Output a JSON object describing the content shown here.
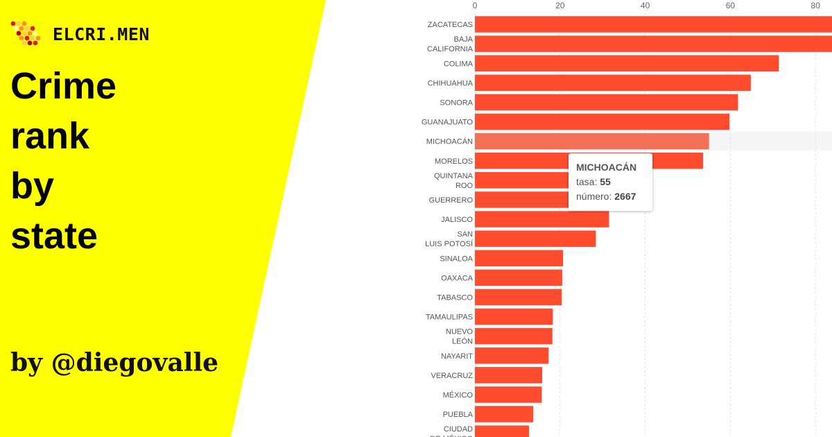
{
  "brand": {
    "name": "ELCRI.MEN"
  },
  "headline": [
    "Crime",
    "rank",
    "by",
    "state"
  ],
  "byline": "by @diegovalle",
  "colors": {
    "panel": "#ffff00",
    "bar": "#ff4b2e",
    "bar_highlight": "#f47059",
    "row_highlight": "#f5f5f8",
    "grid": "#e2e2e2"
  },
  "tooltip": {
    "state": "MICHOACÁN",
    "rate_label": "tasa:",
    "rate_value": "55",
    "count_label": "número:",
    "count_value": "2667"
  },
  "chart_data": {
    "type": "bar",
    "orientation": "horizontal",
    "xlim": [
      0,
      84
    ],
    "xticks": [
      0,
      20,
      40,
      60,
      80
    ],
    "highlighted": "MICHOACÁN",
    "categories": [
      [
        "ZACATECAS"
      ],
      [
        "BAJA",
        "CALIFORNIA"
      ],
      [
        "COLIMA"
      ],
      [
        "CHIHUAHUA"
      ],
      [
        "SONORA"
      ],
      [
        "GUANAJUATO"
      ],
      [
        "MICHOACÁN"
      ],
      [
        "MORELOS"
      ],
      [
        "QUINTANA",
        "ROO"
      ],
      [
        "GUERRERO"
      ],
      [
        "JALISCO"
      ],
      [
        "SAN",
        "LUIS POTOSÍ"
      ],
      [
        "SINALOA"
      ],
      [
        "OAXACA"
      ],
      [
        "TABASCO"
      ],
      [
        "TAMAULIPAS"
      ],
      [
        "NUEVO",
        "LEÓN"
      ],
      [
        "NAYARIT"
      ],
      [
        "VERACRUZ"
      ],
      [
        "MÉXICO"
      ],
      [
        "PUEBLA"
      ],
      [
        "CIUDAD",
        "DE MÉXICO"
      ]
    ],
    "values": [
      88,
      86,
      71.4,
      64.8,
      61.8,
      59.8,
      55,
      53.6,
      32.5,
      32,
      31.5,
      28.4,
      20.7,
      20.5,
      20.4,
      18.3,
      18.2,
      17.3,
      15.8,
      15.7,
      13.7,
      12.7
    ]
  }
}
